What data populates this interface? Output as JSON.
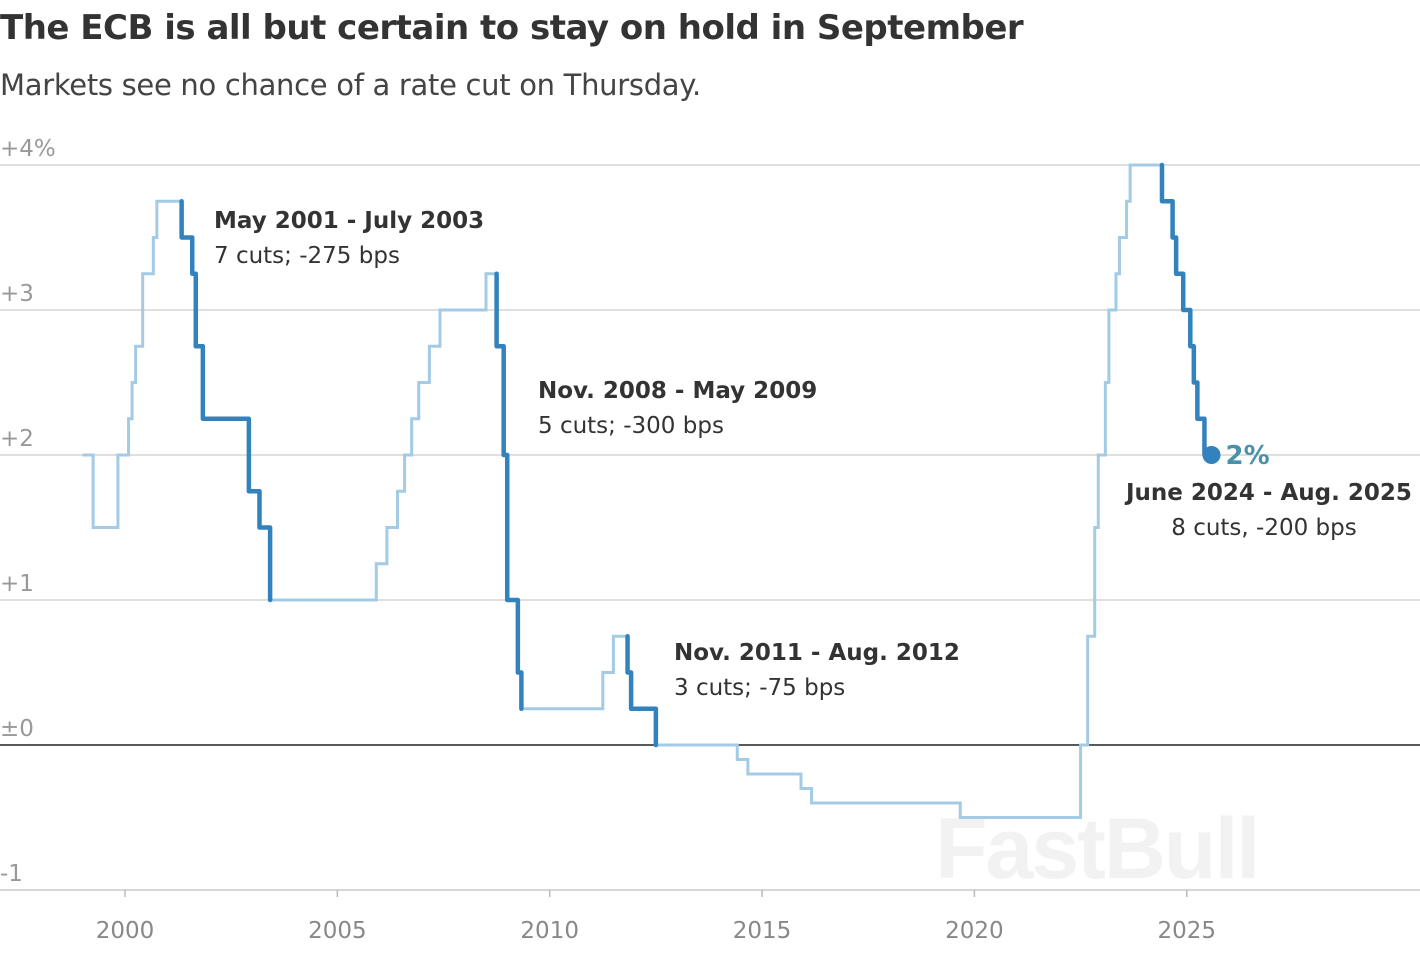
{
  "header": {
    "title": "The ECB is all but certain to stay on hold in September",
    "subtitle": "Markets see no chance of a rate cut on Thursday."
  },
  "watermark": "FastBull",
  "chart_data": {
    "type": "line",
    "step": true,
    "title": "The ECB is all but certain to stay on hold in September",
    "subtitle": "Markets see no chance of a rate cut on Thursday.",
    "xlim": [
      "1998-09",
      "2029-12"
    ],
    "ylim": [
      -1,
      4
    ],
    "x_ticks": [
      "2000",
      "2005",
      "2010",
      "2015",
      "2020",
      "2025"
    ],
    "y_ticks": [
      {
        "value": 4,
        "label": "+4%"
      },
      {
        "value": 3,
        "label": "+3"
      },
      {
        "value": 2,
        "label": "+2"
      },
      {
        "value": 1,
        "label": "+1"
      },
      {
        "value": 0,
        "label": "±0"
      },
      {
        "value": -1,
        "label": "-1"
      }
    ],
    "grid": true,
    "colors": {
      "series": "#a3cbe6",
      "highlight": "#3182bd",
      "end_label": "#4a90a8",
      "grid": "#cccccc",
      "zero": "#222222"
    },
    "series": [
      {
        "steps": [
          [
            "1999-01",
            2.0
          ],
          [
            "1999-04",
            1.5
          ],
          [
            "1999-11",
            2.0
          ],
          [
            "2000-02",
            2.25
          ],
          [
            "2000-03",
            2.5
          ],
          [
            "2000-04",
            2.75
          ],
          [
            "2000-06",
            3.25
          ],
          [
            "2000-09",
            3.5
          ],
          [
            "2000-10",
            3.75
          ],
          [
            "2001-05",
            3.5
          ],
          [
            "2001-08",
            3.25
          ],
          [
            "2001-09",
            2.75
          ],
          [
            "2001-11",
            2.25
          ],
          [
            "2002-12",
            1.75
          ],
          [
            "2003-03",
            1.5
          ],
          [
            "2003-06",
            1.0
          ],
          [
            "2005-12",
            1.25
          ],
          [
            "2006-03",
            1.5
          ],
          [
            "2006-06",
            1.75
          ],
          [
            "2006-08",
            2.0
          ],
          [
            "2006-10",
            2.25
          ],
          [
            "2006-12",
            2.5
          ],
          [
            "2007-03",
            2.75
          ],
          [
            "2007-06",
            3.0
          ],
          [
            "2008-07",
            3.25
          ],
          [
            "2008-10",
            2.75
          ],
          [
            "2008-12",
            2.0
          ],
          [
            "2009-01",
            1.0
          ],
          [
            "2009-04",
            0.5
          ],
          [
            "2009-05",
            0.25
          ],
          [
            "2011-04",
            0.5
          ],
          [
            "2011-07",
            0.75
          ],
          [
            "2011-11",
            0.5
          ],
          [
            "2011-12",
            0.25
          ],
          [
            "2012-07",
            0.0
          ],
          [
            "2014-06",
            -0.1
          ],
          [
            "2014-09",
            -0.2
          ],
          [
            "2015-12",
            -0.3
          ],
          [
            "2016-03",
            -0.4
          ],
          [
            "2019-09",
            -0.5
          ],
          [
            "2022-07",
            0.0
          ],
          [
            "2022-09",
            0.75
          ],
          [
            "2022-11",
            1.5
          ],
          [
            "2022-12",
            2.0
          ],
          [
            "2023-02",
            2.5
          ],
          [
            "2023-03",
            3.0
          ],
          [
            "2023-05",
            3.25
          ],
          [
            "2023-06",
            3.5
          ],
          [
            "2023-08",
            3.75
          ],
          [
            "2023-09",
            4.0
          ],
          [
            "2024-06",
            3.75
          ],
          [
            "2024-09",
            3.5
          ],
          [
            "2024-10",
            3.25
          ],
          [
            "2024-12",
            3.0
          ],
          [
            "2025-02",
            2.75
          ],
          [
            "2025-03",
            2.5
          ],
          [
            "2025-04",
            2.25
          ],
          [
            "2025-06",
            2.0
          ],
          [
            "2025-08",
            2.0
          ]
        ]
      }
    ],
    "end_label": "2%",
    "highlights": [
      {
        "start": "2001-05",
        "end": "2003-06",
        "label": "May 2001 - July 2003",
        "detail": "7 cuts; -275 bps"
      },
      {
        "start": "2008-10",
        "end": "2009-05",
        "label": "Nov. 2008 - May 2009",
        "detail": "5 cuts; -300 bps"
      },
      {
        "start": "2011-11",
        "end": "2012-07",
        "label": "Nov. 2011 - Aug. 2012",
        "detail": "3 cuts; -75 bps"
      },
      {
        "start": "2024-06",
        "end": "2025-08",
        "label": "June 2024 - Aug. 2025",
        "detail": "8 cuts, -200 bps"
      }
    ]
  }
}
